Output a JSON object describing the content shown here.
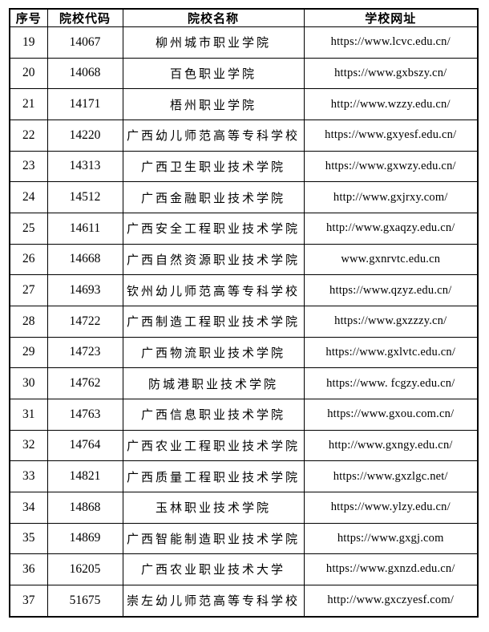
{
  "colors": {
    "background": "#ffffff",
    "border": "#000000",
    "text": "#000000"
  },
  "table": {
    "headers": [
      {
        "key": "no",
        "label": "序号"
      },
      {
        "key": "code",
        "label": "院校代码"
      },
      {
        "key": "name",
        "label": "院校名称"
      },
      {
        "key": "url",
        "label": "学校网址"
      }
    ],
    "rows": [
      {
        "no": "19",
        "code": "14067",
        "name": "柳州城市职业学院",
        "url": "https://www.lcvc.edu.cn/"
      },
      {
        "no": "20",
        "code": "14068",
        "name": "百色职业学院",
        "url": "https://www.gxbszy.cn/"
      },
      {
        "no": "21",
        "code": "14171",
        "name": "梧州职业学院",
        "url": "http://www.wzzy.edu.cn/"
      },
      {
        "no": "22",
        "code": "14220",
        "name": "广西幼儿师范高等专科学校",
        "url": "https://www.gxyesf.edu.cn/"
      },
      {
        "no": "23",
        "code": "14313",
        "name": "广西卫生职业技术学院",
        "url": "https://www.gxwzy.edu.cn/"
      },
      {
        "no": "24",
        "code": "14512",
        "name": "广西金融职业技术学院",
        "url": "http://www.gxjrxy.com/"
      },
      {
        "no": "25",
        "code": "14611",
        "name": "广西安全工程职业技术学院",
        "url": "http://www.gxaqzy.edu.cn/"
      },
      {
        "no": "26",
        "code": "14668",
        "name": "广西自然资源职业技术学院",
        "url": "www.gxnrvtc.edu.cn"
      },
      {
        "no": "27",
        "code": "14693",
        "name": "钦州幼儿师范高等专科学校",
        "url": "https://www.qzyz.edu.cn/"
      },
      {
        "no": "28",
        "code": "14722",
        "name": "广西制造工程职业技术学院",
        "url": "https://www.gxzzzy.cn/"
      },
      {
        "no": "29",
        "code": "14723",
        "name": "广西物流职业技术学院",
        "url": "https://www.gxlvtc.edu.cn/"
      },
      {
        "no": "30",
        "code": "14762",
        "name": "防城港职业技术学院",
        "url": "https://www. fcgzy.edu.cn/"
      },
      {
        "no": "31",
        "code": "14763",
        "name": "广西信息职业技术学院",
        "url": "https://www.gxou.com.cn/"
      },
      {
        "no": "32",
        "code": "14764",
        "name": "广西农业工程职业技术学院",
        "url": "http://www.gxngy.edu.cn/"
      },
      {
        "no": "33",
        "code": "14821",
        "name": "广西质量工程职业技术学院",
        "url": "https://www.gxzlgc.net/"
      },
      {
        "no": "34",
        "code": "14868",
        "name": "玉林职业技术学院",
        "url": "https://www.ylzy.edu.cn/"
      },
      {
        "no": "35",
        "code": "14869",
        "name": "广西智能制造职业技术学院",
        "url": "https://www.gxgj.com"
      },
      {
        "no": "36",
        "code": "16205",
        "name": "广西农业职业技术大学",
        "url": "https://www.gxnzd.edu.cn/"
      },
      {
        "no": "37",
        "code": "51675",
        "name": "崇左幼儿师范高等专科学校",
        "url": "http://www.gxczyesf.com/"
      }
    ]
  }
}
